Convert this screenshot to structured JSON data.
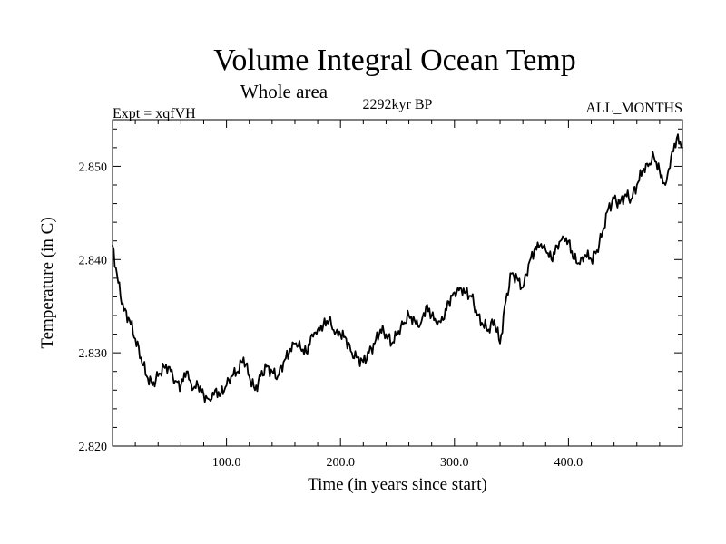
{
  "chart_data": {
    "type": "line",
    "title": "Volume Integral Ocean Temp",
    "subtitle": "Whole area",
    "annotations": {
      "left": "Expt = xqfVH",
      "center": "2292kyr BP",
      "right": "ALL_MONTHS"
    },
    "xlabel": "Time (in years since start)",
    "ylabel": "Temperature (in C)",
    "xlim": [
      0,
      500
    ],
    "ylim": [
      2.82,
      2.855
    ],
    "xticks": [
      {
        "value": 100,
        "label": "100.0"
      },
      {
        "value": 200,
        "label": "200.0"
      },
      {
        "value": 300,
        "label": "300.0"
      },
      {
        "value": 400,
        "label": "400.0"
      }
    ],
    "yticks": [
      {
        "value": 2.82,
        "label": "2.820"
      },
      {
        "value": 2.83,
        "label": "2.830"
      },
      {
        "value": 2.84,
        "label": "2.840"
      },
      {
        "value": 2.85,
        "label": "2.850"
      }
    ],
    "grid": false,
    "series": [
      {
        "name": "Volume Integral Ocean Temp",
        "color": "#000000",
        "x": [
          0,
          5,
          10,
          15,
          20,
          25,
          30,
          35,
          40,
          45,
          50,
          55,
          60,
          65,
          70,
          75,
          80,
          85,
          90,
          95,
          100,
          105,
          110,
          115,
          120,
          125,
          130,
          135,
          140,
          145,
          150,
          155,
          160,
          165,
          170,
          175,
          180,
          185,
          190,
          195,
          200,
          205,
          210,
          215,
          220,
          225,
          230,
          235,
          240,
          245,
          250,
          255,
          260,
          265,
          270,
          275,
          280,
          285,
          290,
          295,
          300,
          305,
          310,
          315,
          320,
          325,
          330,
          335,
          340,
          345,
          350,
          355,
          360,
          365,
          370,
          375,
          380,
          385,
          390,
          395,
          400,
          405,
          410,
          415,
          420,
          425,
          430,
          435,
          440,
          445,
          450,
          455,
          460,
          465,
          470,
          475,
          480,
          485,
          490,
          495,
          500
        ],
        "values": [
          2.8415,
          2.8375,
          2.8345,
          2.8335,
          2.8315,
          2.8295,
          2.8275,
          2.8265,
          2.8275,
          2.8285,
          2.8285,
          2.827,
          2.8265,
          2.828,
          2.826,
          2.8265,
          2.8255,
          2.825,
          2.826,
          2.8255,
          2.8265,
          2.8275,
          2.828,
          2.8295,
          2.8275,
          2.826,
          2.8275,
          2.8285,
          2.828,
          2.8275,
          2.829,
          2.83,
          2.831,
          2.8305,
          2.83,
          2.832,
          2.8325,
          2.833,
          2.8335,
          2.832,
          2.832,
          2.8315,
          2.83,
          2.8295,
          2.829,
          2.83,
          2.831,
          2.8325,
          2.832,
          2.831,
          2.832,
          2.833,
          2.834,
          2.8335,
          2.833,
          2.835,
          2.834,
          2.833,
          2.8335,
          2.8355,
          2.8365,
          2.837,
          2.8365,
          2.836,
          2.834,
          2.833,
          2.8325,
          2.8335,
          2.831,
          2.8355,
          2.8385,
          2.838,
          2.837,
          2.8395,
          2.841,
          2.8415,
          2.841,
          2.84,
          2.8415,
          2.8425,
          2.842,
          2.84,
          2.8395,
          2.8405,
          2.84,
          2.841,
          2.843,
          2.8455,
          2.8465,
          2.846,
          2.847,
          2.8465,
          2.848,
          2.8495,
          2.85,
          2.851,
          2.8495,
          2.848,
          2.851,
          2.853,
          2.852
        ]
      }
    ]
  }
}
